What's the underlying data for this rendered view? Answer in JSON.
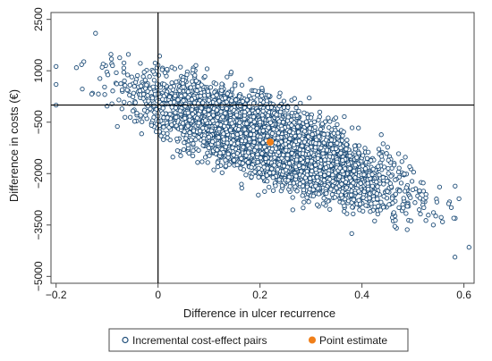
{
  "chart_data": {
    "type": "scatter",
    "title": "",
    "xlabel": "Difference in ulcer recurrence",
    "ylabel": "Difference in costs (€)",
    "xlim": [
      -0.21,
      0.62
    ],
    "ylim": [
      -5200,
      2700
    ],
    "x_ticks": [
      -0.2,
      0,
      0.2,
      0.4,
      0.6
    ],
    "x_tick_labels": [
      "−0.2",
      "0",
      "0.2",
      "0.4",
      "0.6"
    ],
    "y_ticks": [
      2500,
      1000,
      -500,
      -2000,
      -3500,
      -5000
    ],
    "y_tick_labels": [
      "2500",
      "1000",
      "−500",
      "−2000",
      "−3500",
      "−5000"
    ],
    "reference_lines": {
      "x": 0,
      "y": 0
    },
    "grid": false,
    "legend_position": "bottom",
    "series": [
      {
        "name": "Incremental cost-effect pairs",
        "kind": "bootstrap-cloud",
        "color": "#1f4e79",
        "marker": "hollow-circle",
        "n_points": 5000,
        "center": {
          "x": 0.22,
          "y": -1070
        },
        "sd": {
          "x": 0.115,
          "y": 820
        },
        "correlation": -0.78,
        "outliers": [
          {
            "x": -0.2,
            "y": 600
          },
          {
            "x": -0.15,
            "y": 1180
          },
          {
            "x": -0.13,
            "y": 320
          },
          {
            "x": -0.1,
            "y": -30
          },
          {
            "x": 0.54,
            "y": -3500
          },
          {
            "x": 0.58,
            "y": -3300
          },
          {
            "x": 0.57,
            "y": -2880
          },
          {
            "x": 0.38,
            "y": -3750
          }
        ]
      },
      {
        "name": "Point estimate",
        "kind": "points",
        "color": "#f07f1a",
        "marker": "filled-circle",
        "points": [
          {
            "x": 0.22,
            "y": -1080
          }
        ]
      }
    ]
  }
}
